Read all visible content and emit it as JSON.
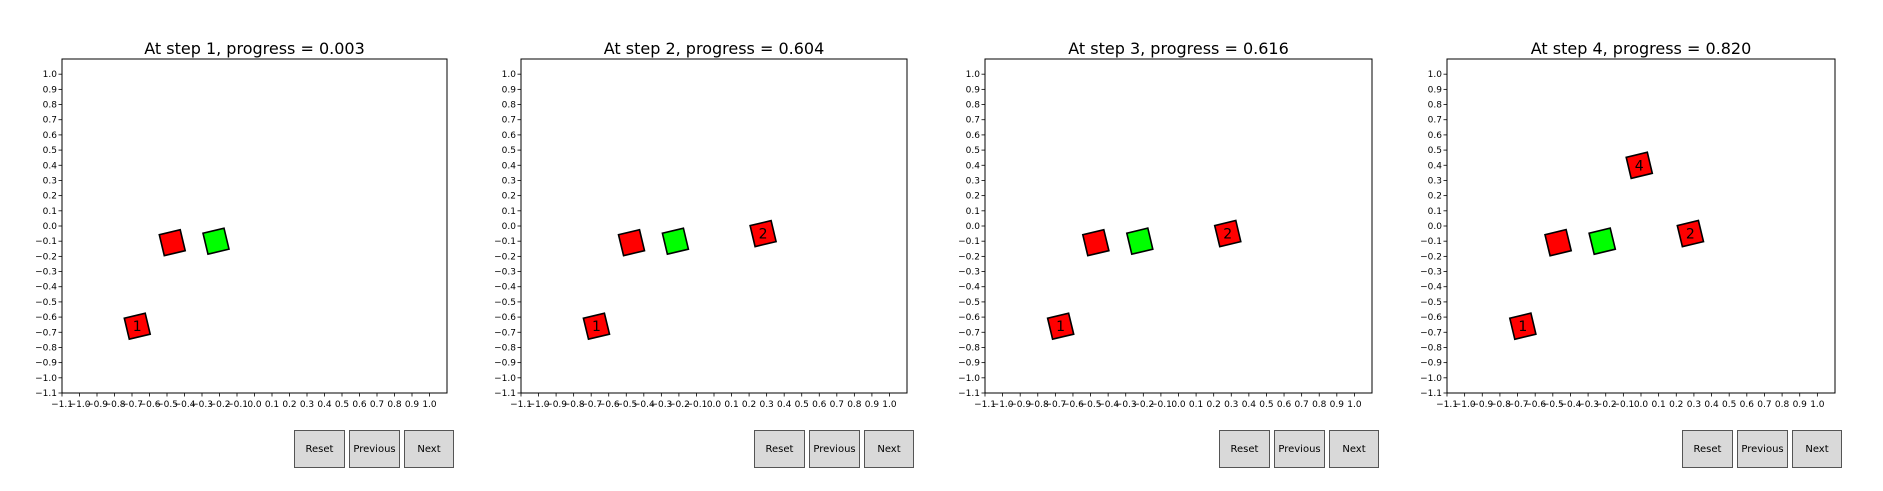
{
  "chart_data": [
    {
      "type": "scatter",
      "title": "At step 1, progress = 0.003",
      "xlim": [
        -1.1,
        1.1
      ],
      "ylim": [
        -1.1,
        1.1
      ],
      "grid": false,
      "shapes": [
        {
          "kind": "diamond",
          "x": -0.67,
          "y": -0.66,
          "color": "#ff0000",
          "label": "1"
        },
        {
          "kind": "diamond",
          "x": -0.47,
          "y": -0.11,
          "color": "#ff0000",
          "label": ""
        },
        {
          "kind": "diamond",
          "x": -0.22,
          "y": -0.1,
          "color": "#00ff00",
          "label": ""
        }
      ]
    },
    {
      "type": "scatter",
      "title": "At step 2, progress = 0.604",
      "xlim": [
        -1.1,
        1.1
      ],
      "ylim": [
        -1.1,
        1.1
      ],
      "grid": false,
      "shapes": [
        {
          "kind": "diamond",
          "x": -0.67,
          "y": -0.66,
          "color": "#ff0000",
          "label": "1"
        },
        {
          "kind": "diamond",
          "x": -0.47,
          "y": -0.11,
          "color": "#ff0000",
          "label": ""
        },
        {
          "kind": "diamond",
          "x": -0.22,
          "y": -0.1,
          "color": "#00ff00",
          "label": ""
        },
        {
          "kind": "diamond",
          "x": 0.28,
          "y": -0.05,
          "color": "#ff0000",
          "label": "2"
        }
      ]
    },
    {
      "type": "scatter",
      "title": "At step 3, progress = 0.616",
      "xlim": [
        -1.1,
        1.1
      ],
      "ylim": [
        -1.1,
        1.1
      ],
      "grid": false,
      "shapes": [
        {
          "kind": "diamond",
          "x": -0.67,
          "y": -0.66,
          "color": "#ff0000",
          "label": "1"
        },
        {
          "kind": "diamond",
          "x": -0.47,
          "y": -0.11,
          "color": "#ff0000",
          "label": ""
        },
        {
          "kind": "diamond",
          "x": -0.22,
          "y": -0.1,
          "color": "#00ff00",
          "label": ""
        },
        {
          "kind": "diamond",
          "x": 0.28,
          "y": -0.05,
          "color": "#ff0000",
          "label": "2"
        }
      ]
    },
    {
      "type": "scatter",
      "title": "At step 4, progress = 0.820",
      "xlim": [
        -1.1,
        1.1
      ],
      "ylim": [
        -1.1,
        1.1
      ],
      "grid": false,
      "shapes": [
        {
          "kind": "diamond",
          "x": -0.67,
          "y": -0.66,
          "color": "#ff0000",
          "label": "1"
        },
        {
          "kind": "diamond",
          "x": -0.47,
          "y": -0.11,
          "color": "#ff0000",
          "label": ""
        },
        {
          "kind": "diamond",
          "x": -0.22,
          "y": -0.1,
          "color": "#00ff00",
          "label": ""
        },
        {
          "kind": "diamond",
          "x": 0.28,
          "y": -0.05,
          "color": "#ff0000",
          "label": "2"
        },
        {
          "kind": "diamond",
          "x": -0.01,
          "y": 0.4,
          "color": "#ff0000",
          "label": "4"
        }
      ]
    }
  ],
  "ticks": [
    -1.1,
    -1.0,
    -0.9,
    -0.8,
    -0.7,
    -0.6,
    -0.5,
    -0.4,
    -0.3,
    -0.2,
    -0.1,
    0.0,
    0.1,
    0.2,
    0.3,
    0.4,
    0.5,
    0.6,
    0.7,
    0.8,
    0.9,
    1.0
  ],
  "buttons": {
    "reset": "Reset",
    "previous": "Previous",
    "next": "Next"
  },
  "colors": {
    "red": "#ff0000",
    "green": "#00ff00",
    "button_bg": "#d9d9d9"
  }
}
